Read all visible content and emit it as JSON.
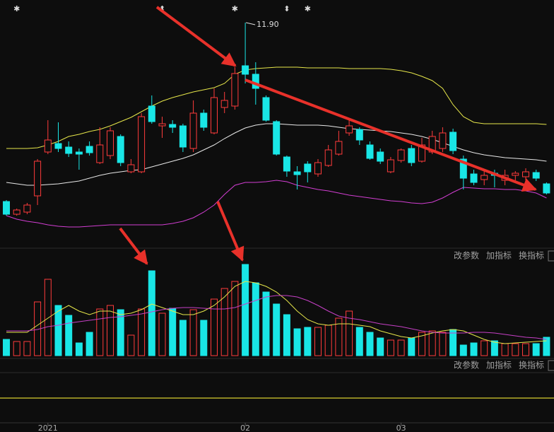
{
  "chart_data": [
    {
      "type": "candlestick",
      "annotation": "11.90",
      "events": [
        null,
        "✱",
        null,
        null,
        null,
        null,
        null,
        null,
        null,
        null,
        null,
        null,
        null,
        null,
        null,
        "⬍",
        null,
        null,
        null,
        null,
        null,
        null,
        "✱",
        null,
        null,
        null,
        null,
        "⬍",
        null,
        "✱",
        null,
        null,
        null,
        null,
        null,
        null,
        null,
        null,
        null,
        null,
        null,
        null,
        null,
        null,
        null,
        null,
        null,
        null,
        null,
        null,
        null,
        null,
        null
      ],
      "categories": [
        null,
        null,
        null,
        null,
        "2021",
        null,
        null,
        null,
        null,
        null,
        null,
        null,
        null,
        null,
        null,
        null,
        null,
        null,
        null,
        null,
        null,
        null,
        null,
        "02",
        null,
        null,
        null,
        null,
        null,
        null,
        null,
        null,
        null,
        null,
        null,
        null,
        null,
        null,
        "03",
        null,
        null,
        null,
        null,
        null,
        null,
        null,
        null,
        null,
        null,
        null,
        null,
        null,
        null
      ],
      "ylim": [
        8.72,
        12.22
      ],
      "up_color": "#ff3b3b",
      "down_color": "#19e6e6",
      "open": [
        9.37,
        9.19,
        9.22,
        9.45,
        10.07,
        10.19,
        10.14,
        10.07,
        10.15,
        9.92,
        10.02,
        10.29,
        9.79,
        9.79,
        10.72,
        10.44,
        10.46,
        10.44,
        10.12,
        10.62,
        10.34,
        10.7,
        10.72,
        11.29,
        11.17,
        10.84,
        10.5,
        10.0,
        9.79,
        9.9,
        9.76,
        9.88,
        10.04,
        10.34,
        10.39,
        10.17,
        10.07,
        9.79,
        9.95,
        10.12,
        9.94,
        10.07,
        10.12,
        10.35,
        9.97,
        9.76,
        9.68,
        9.77,
        9.67,
        9.74,
        9.72,
        9.78,
        9.62
      ],
      "high": [
        9.39,
        9.27,
        9.35,
        9.97,
        10.52,
        10.49,
        10.22,
        10.12,
        10.22,
        10.42,
        10.42,
        10.32,
        9.97,
        10.62,
        10.87,
        10.57,
        10.52,
        10.47,
        10.8,
        10.67,
        10.97,
        10.92,
        11.27,
        11.9,
        11.34,
        10.87,
        10.52,
        10.02,
        9.87,
        9.94,
        9.97,
        10.17,
        10.37,
        10.52,
        10.42,
        10.22,
        10.12,
        10.0,
        10.12,
        10.17,
        10.27,
        10.37,
        10.42,
        10.4,
        10.02,
        9.82,
        9.82,
        9.82,
        9.82,
        9.8,
        9.84,
        9.82,
        9.64
      ],
      "low": [
        9.17,
        9.17,
        9.19,
        9.32,
        10.04,
        10.07,
        10.0,
        9.82,
        10.02,
        9.9,
        9.97,
        9.87,
        9.77,
        9.77,
        10.47,
        10.27,
        10.34,
        10.07,
        10.07,
        10.37,
        10.32,
        10.62,
        10.67,
        11.04,
        10.74,
        10.5,
        10.02,
        9.72,
        9.54,
        9.64,
        9.72,
        9.86,
        10.02,
        10.3,
        10.17,
        9.96,
        9.9,
        9.77,
        9.92,
        9.87,
        9.92,
        10.04,
        10.07,
        10.04,
        9.54,
        9.6,
        9.6,
        9.57,
        9.6,
        9.67,
        9.67,
        9.66,
        9.47
      ],
      "close": [
        9.19,
        9.25,
        9.32,
        9.94,
        10.24,
        10.12,
        10.05,
        10.04,
        10.06,
        10.17,
        10.37,
        9.92,
        9.89,
        10.57,
        10.5,
        10.47,
        10.42,
        10.14,
        10.62,
        10.42,
        10.84,
        10.8,
        11.18,
        11.17,
        10.97,
        10.52,
        10.04,
        9.8,
        9.75,
        9.79,
        9.92,
        10.1,
        10.22,
        10.44,
        10.24,
        9.98,
        9.94,
        9.96,
        10.1,
        9.92,
        10.17,
        10.29,
        10.34,
        10.09,
        9.7,
        9.64,
        9.74,
        9.74,
        9.74,
        9.77,
        9.79,
        9.7,
        9.49
      ],
      "lines": [
        {
          "color": "#e6e64a",
          "values": [
            10.12,
            10.12,
            10.12,
            10.13,
            10.17,
            10.22,
            10.29,
            10.32,
            10.36,
            10.39,
            10.44,
            10.5,
            10.56,
            10.64,
            10.72,
            10.79,
            10.84,
            10.88,
            10.92,
            10.95,
            10.98,
            11.04,
            11.17,
            11.23,
            11.25,
            11.26,
            11.27,
            11.27,
            11.27,
            11.26,
            11.26,
            11.26,
            11.26,
            11.25,
            11.25,
            11.25,
            11.25,
            11.24,
            11.22,
            11.19,
            11.14,
            11.08,
            10.97,
            10.74,
            10.57,
            10.49,
            10.47,
            10.47,
            10.47,
            10.47,
            10.47,
            10.47,
            10.46
          ]
        },
        {
          "color": "#e8e8e8",
          "values": [
            9.64,
            9.62,
            9.6,
            9.6,
            9.61,
            9.62,
            9.64,
            9.66,
            9.7,
            9.74,
            9.77,
            9.79,
            9.81,
            9.82,
            9.86,
            9.9,
            9.94,
            9.98,
            10.03,
            10.1,
            10.17,
            10.26,
            10.34,
            10.41,
            10.45,
            10.47,
            10.47,
            10.46,
            10.45,
            10.45,
            10.45,
            10.44,
            10.42,
            10.4,
            10.39,
            10.38,
            10.37,
            10.36,
            10.34,
            10.32,
            10.29,
            10.25,
            10.2,
            10.15,
            10.1,
            10.06,
            10.03,
            10.01,
            9.99,
            9.98,
            9.97,
            9.96,
            9.94
          ]
        },
        {
          "color": "#d23ed2",
          "values": [
            9.17,
            9.12,
            9.09,
            9.07,
            9.04,
            9.02,
            9.01,
            9.01,
            9.02,
            9.03,
            9.04,
            9.04,
            9.04,
            9.04,
            9.04,
            9.04,
            9.06,
            9.09,
            9.14,
            9.22,
            9.32,
            9.47,
            9.6,
            9.64,
            9.64,
            9.65,
            9.67,
            9.65,
            9.6,
            9.57,
            9.54,
            9.52,
            9.49,
            9.46,
            9.44,
            9.42,
            9.4,
            9.38,
            9.37,
            9.35,
            9.34,
            9.36,
            9.42,
            9.5,
            9.57,
            9.56,
            9.55,
            9.55,
            9.54,
            9.54,
            9.52,
            9.49,
            9.42
          ]
        }
      ],
      "buttons": [
        "改参数",
        "加指标",
        "换指标"
      ]
    },
    {
      "type": "volume",
      "ylim": [
        0,
        131
      ],
      "values": [
        23,
        20,
        20,
        76,
        108,
        71,
        57,
        18,
        33,
        66,
        71,
        65,
        29,
        66,
        120,
        60,
        67,
        50,
        65,
        50,
        80,
        95,
        105,
        129,
        103,
        90,
        73,
        58,
        38,
        40,
        40,
        43,
        53,
        63,
        40,
        33,
        25,
        22,
        22,
        25,
        33,
        35,
        33,
        37,
        15,
        18,
        21,
        21,
        17,
        17,
        17,
        17,
        26
      ],
      "lines": [
        {
          "color": "#e6e64a",
          "values": [
            33,
            33,
            33,
            43,
            53,
            63,
            71,
            63,
            58,
            63,
            63,
            58,
            60,
            65,
            73,
            68,
            63,
            58,
            58,
            63,
            71,
            83,
            98,
            105,
            103,
            98,
            90,
            78,
            63,
            51,
            45,
            43,
            45,
            45,
            43,
            41,
            35,
            31,
            27,
            25,
            28,
            32,
            35,
            37,
            35,
            29,
            23,
            19,
            17,
            18,
            19,
            20,
            21
          ]
        },
        {
          "color": "#c640c6",
          "values": [
            35,
            35,
            35,
            37,
            41,
            43,
            46,
            48,
            50,
            52,
            54,
            55,
            57,
            59,
            62,
            65,
            67,
            68,
            68,
            67,
            66,
            66,
            68,
            73,
            78,
            83,
            85,
            85,
            83,
            78,
            71,
            63,
            56,
            53,
            51,
            48,
            45,
            43,
            41,
            38,
            35,
            33,
            32,
            32,
            32,
            33,
            33,
            32,
            30,
            28,
            26,
            25,
            23
          ]
        }
      ],
      "buttons": [
        "改参数",
        "加指标",
        "换指标"
      ]
    }
  ]
}
